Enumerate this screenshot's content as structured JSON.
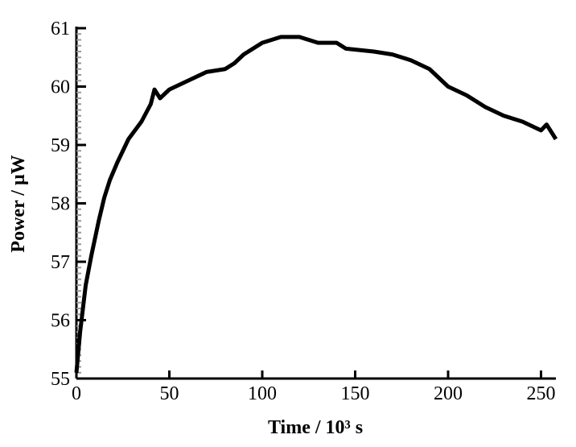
{
  "chart_data": {
    "type": "line",
    "x_label": "Time / 10³ s",
    "y_label": "Power / μW",
    "x": [
      0,
      2,
      5,
      8,
      12,
      15,
      18,
      22,
      28,
      35,
      40,
      42,
      45,
      50,
      60,
      70,
      80,
      85,
      90,
      100,
      110,
      120,
      125,
      130,
      140,
      145,
      160,
      170,
      180,
      190,
      200,
      210,
      220,
      230,
      240,
      250,
      253,
      258
    ],
    "series": [
      {
        "color": "#000000",
        "values": [
          55.1,
          55.8,
          56.6,
          57.1,
          57.7,
          58.1,
          58.4,
          58.7,
          59.1,
          59.4,
          59.7,
          59.95,
          59.8,
          59.95,
          60.1,
          60.25,
          60.3,
          60.4,
          60.55,
          60.75,
          60.85,
          60.85,
          60.8,
          60.75,
          60.75,
          60.65,
          60.6,
          60.55,
          60.45,
          60.3,
          60.0,
          59.85,
          59.65,
          59.5,
          59.4,
          59.25,
          59.35,
          59.1
        ]
      }
    ],
    "xlim": [
      0,
      258
    ],
    "ylim": [
      55,
      61
    ],
    "xticks": [
      0,
      50,
      100,
      150,
      200,
      250
    ],
    "yticks": [
      55,
      56,
      57,
      58,
      59,
      60,
      61
    ]
  }
}
